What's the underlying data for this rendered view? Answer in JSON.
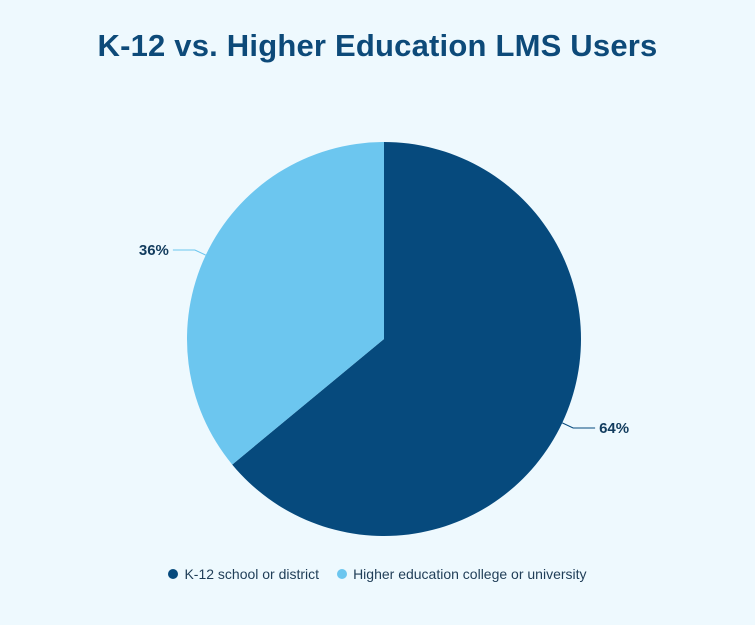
{
  "chart_data": {
    "type": "pie",
    "title": "K-12 vs. Higher Education LMS Users",
    "slices": [
      {
        "name": "K-12 school or district",
        "value": 64,
        "label": "64%",
        "color": "#064a7d"
      },
      {
        "name": "Higher education college or university",
        "value": 36,
        "label": "36%",
        "color": "#6cc6ef"
      }
    ],
    "legend_position": "bottom"
  }
}
